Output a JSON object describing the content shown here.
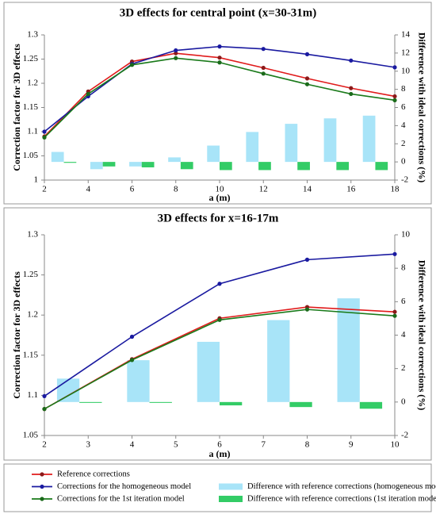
{
  "chart_data": [
    {
      "type": "line",
      "title": "3D effects for central point (x=30-31m)",
      "xlabel": "a (m)",
      "ylabel": "Correction factor for 3D effects",
      "y2label": "Difference with ideal corrections (%)",
      "xlim": [
        2,
        18
      ],
      "xticks": [
        2,
        4,
        6,
        8,
        10,
        12,
        14,
        16,
        18
      ],
      "ylim": [
        1,
        1.3
      ],
      "yticks": [
        1,
        1.05,
        1.1,
        1.15,
        1.2,
        1.25,
        1.3
      ],
      "y2lim": [
        -2,
        14
      ],
      "y2ticks": [
        -2,
        0,
        2,
        4,
        6,
        8,
        10,
        12,
        14
      ],
      "x": [
        2,
        4,
        6,
        8,
        10,
        12,
        14,
        16,
        18
      ],
      "categories": [
        null,
        null,
        null,
        null,
        null,
        null,
        null,
        null,
        null
      ],
      "series": [
        {
          "name": "Reference corrections",
          "type": "line",
          "color": "#e01b1b",
          "marker": "#8b1a1a",
          "values": [
            1.09,
            1.183,
            1.245,
            1.262,
            1.253,
            1.232,
            1.21,
            1.19,
            1.173
          ]
        },
        {
          "name": "Corrections for the homogeneous model",
          "type": "line",
          "color": "#1a1aa0",
          "marker": "#1a1aa0",
          "values": [
            1.1,
            1.173,
            1.24,
            1.268,
            1.276,
            1.271,
            1.26,
            1.247,
            1.233
          ]
        },
        {
          "name": "Corrections for the 1st iteration model",
          "type": "line",
          "color": "#1a7a1a",
          "marker": "#1a6a1a",
          "values": [
            1.088,
            1.178,
            1.238,
            1.252,
            1.243,
            1.22,
            1.198,
            1.178,
            1.165
          ]
        },
        {
          "name": "Difference with reference corrections (homogeneous model)",
          "type": "bar",
          "axis": "y2",
          "color": "#a8e4f8",
          "values": [
            1.1,
            -0.8,
            -0.5,
            0.5,
            1.8,
            3.3,
            4.2,
            4.8,
            5.1
          ]
        },
        {
          "name": "Difference with reference corrections (1st iteration model)",
          "type": "bar",
          "axis": "y2",
          "color": "#33cc66",
          "values": [
            -0.1,
            -0.5,
            -0.6,
            -0.8,
            -0.9,
            -0.9,
            -0.9,
            -0.9,
            -0.9
          ]
        }
      ]
    },
    {
      "type": "line",
      "title": "3D effects for x=16-17m",
      "xlabel": "a (m)",
      "ylabel": "Correction factor for 3D effects",
      "y2label": "Difference with ideal corrections (%)",
      "xlim": [
        2,
        10
      ],
      "xticks": [
        2,
        3,
        4,
        5,
        6,
        7,
        8,
        9,
        10
      ],
      "ylim": [
        1.05,
        1.3
      ],
      "yticks": [
        1.05,
        1.1,
        1.15,
        1.2,
        1.25,
        1.3
      ],
      "y2lim": [
        -2,
        10
      ],
      "y2ticks": [
        -2,
        0,
        2,
        4,
        6,
        8,
        10
      ],
      "x": [
        2,
        4,
        6,
        8,
        10
      ],
      "categories": [
        null,
        null,
        null,
        null,
        null
      ],
      "series": [
        {
          "type": "line",
          "color": "#e01b1b",
          "marker": "#8b1a1a",
          "values": [
            1.083,
            1.145,
            1.196,
            1.21,
            1.204
          ]
        },
        {
          "type": "line",
          "color": "#1a1aa0",
          "marker": "#1a1aa0",
          "values": [
            1.099,
            1.173,
            1.239,
            1.269,
            1.276
          ]
        },
        {
          "type": "line",
          "color": "#1a7a1a",
          "marker": "#1a6a1a",
          "values": [
            1.083,
            1.144,
            1.194,
            1.207,
            1.199
          ]
        },
        {
          "type": "bar",
          "axis": "y2",
          "color": "#a8e4f8",
          "values": [
            1.4,
            2.5,
            3.6,
            4.9,
            6.2
          ]
        },
        {
          "type": "bar",
          "axis": "y2",
          "color": "#33cc66",
          "values": [
            -0.05,
            -0.05,
            -0.2,
            -0.3,
            -0.4
          ]
        }
      ]
    }
  ],
  "legend": "bottom"
}
